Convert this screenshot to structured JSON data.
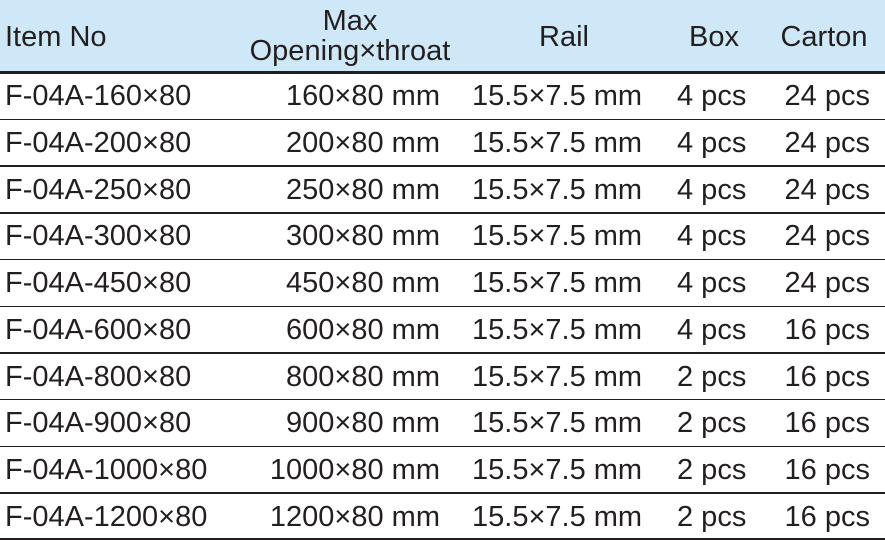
{
  "table": {
    "header": [
      "Item No",
      [
        "Max",
        "Opening×throat"
      ],
      "Rail",
      "Box",
      "Carton"
    ],
    "rows": [
      [
        "F-04A-160×80",
        "160×80 mm",
        "15.5×7.5 mm",
        "4 pcs",
        "24 pcs"
      ],
      [
        "F-04A-200×80",
        "200×80 mm",
        "15.5×7.5 mm",
        "4 pcs",
        "24 pcs"
      ],
      [
        "F-04A-250×80",
        "250×80 mm",
        "15.5×7.5 mm",
        "4 pcs",
        "24 pcs"
      ],
      [
        "F-04A-300×80",
        "300×80 mm",
        "15.5×7.5 mm",
        "4 pcs",
        "24 pcs"
      ],
      [
        "F-04A-450×80",
        "450×80 mm",
        "15.5×7.5 mm",
        "4 pcs",
        "24 pcs"
      ],
      [
        "F-04A-600×80",
        "600×80 mm",
        "15.5×7.5 mm",
        "4 pcs",
        "16 pcs"
      ],
      [
        "F-04A-800×80",
        "800×80 mm",
        "15.5×7.5 mm",
        "2 pcs",
        "16 pcs"
      ],
      [
        "F-04A-900×80",
        "900×80 mm",
        "15.5×7.5 mm",
        "2 pcs",
        "16 pcs"
      ],
      [
        "F-04A-1000×80",
        "1000×80 mm",
        "15.5×7.5 mm",
        "2 pcs",
        "16 pcs"
      ],
      [
        "F-04A-1200×80",
        "1200×80 mm",
        "15.5×7.5 mm",
        "2 pcs",
        "16 pcs"
      ]
    ]
  }
}
